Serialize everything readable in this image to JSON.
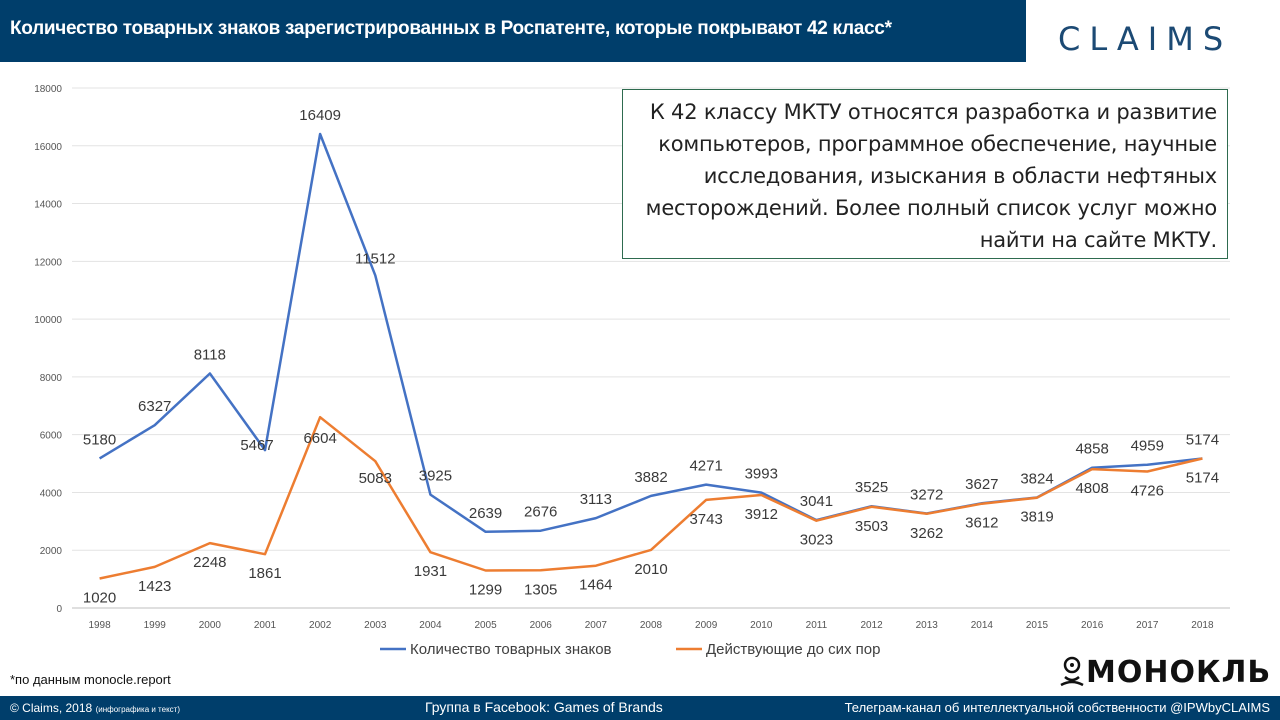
{
  "header": {
    "title": "Количество товарных знаков зарегистрированных в Роспатенте, которые покрывают 42 класс*"
  },
  "brand": {
    "name": "CLAIMS"
  },
  "info_box": {
    "text": "К 42 классу МКТУ относятся разработка и развитие компьютеров, программное обеспечение, научные исследования, изыскания в области нефтяных месторождений. Более полный список услуг можно найти на сайте МКТУ."
  },
  "footnote": "*по данным monocle.report",
  "monokl_logo": {
    "text": "МОНОКЛЬ",
    "icon": "monocle-face-icon"
  },
  "footer": {
    "copyright": "© Claims, 2018",
    "copyright_note": "(инфографика и текст)",
    "facebook": "Группа в Facebook: Games of Brands",
    "telegram": "Телеграм-канал об интеллектуальной собственности @IPWbyCLAIMS"
  },
  "colors": {
    "header_bg": "#003e6b",
    "series_blue": "#4472c4",
    "series_orange": "#ed7d31",
    "info_border": "#2e6b4f"
  },
  "chart_data": {
    "type": "line",
    "categories": [
      "1998",
      "1999",
      "2000",
      "2001",
      "2002",
      "2003",
      "2004",
      "2005",
      "2006",
      "2007",
      "2008",
      "2009",
      "2010",
      "2011",
      "2012",
      "2013",
      "2014",
      "2015",
      "2016",
      "2017",
      "2018"
    ],
    "ylim": [
      0,
      18000
    ],
    "yticks": [
      0,
      2000,
      4000,
      6000,
      8000,
      10000,
      12000,
      14000,
      16000,
      18000
    ],
    "grid": true,
    "legend": "bottom",
    "series": [
      {
        "name": "Количество товарных знаков",
        "color": "#4472c4",
        "values": [
          5180,
          6327,
          8118,
          5467,
          16409,
          11512,
          3925,
          2639,
          2676,
          3113,
          3882,
          4271,
          3993,
          3041,
          3525,
          3272,
          3627,
          3824,
          4858,
          4959,
          5174
        ]
      },
      {
        "name": "Действующие до сих пор",
        "color": "#ed7d31",
        "values": [
          1020,
          1423,
          2248,
          1861,
          6604,
          5083,
          1931,
          1299,
          1305,
          1464,
          2010,
          3743,
          3912,
          3023,
          3503,
          3262,
          3612,
          3819,
          4808,
          4726,
          5174
        ]
      }
    ]
  }
}
